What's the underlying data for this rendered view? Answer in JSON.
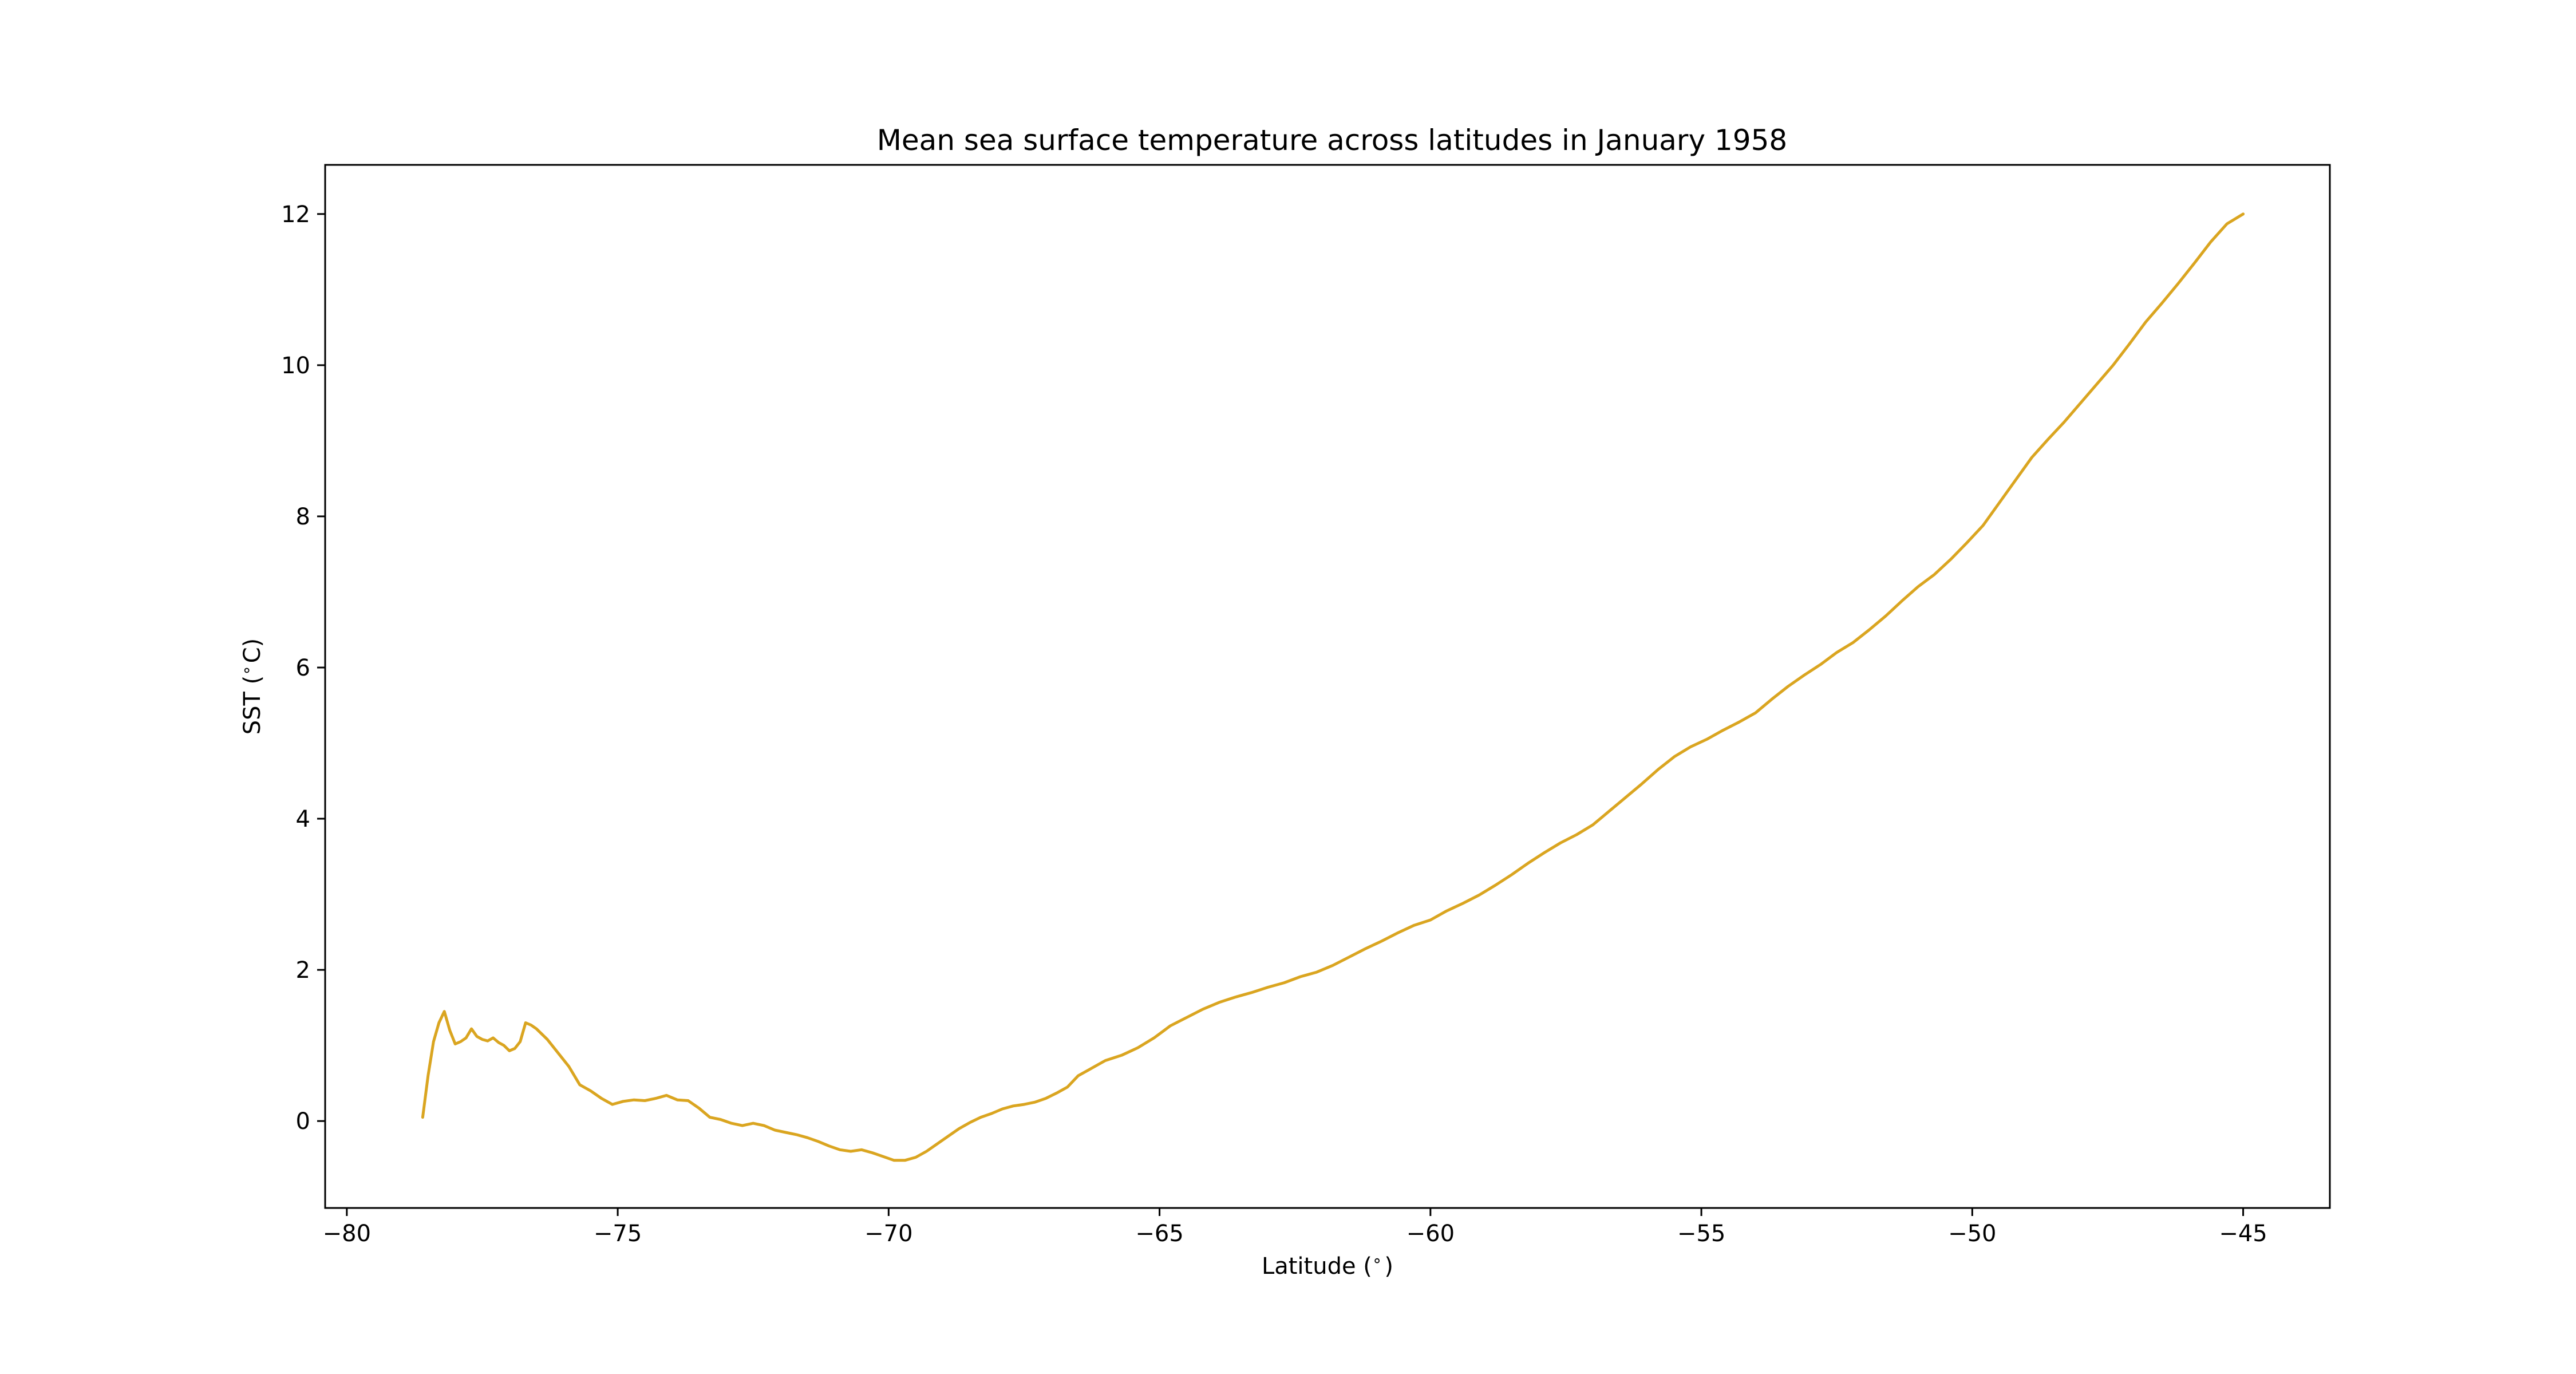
{
  "chart_data": {
    "type": "line",
    "title": "Mean sea surface temperature across latitudes in January 1958",
    "xlabel": "Latitude ($^\\circ$)",
    "ylabel": "SST ($^\\circ$C)",
    "xlim": [
      -80.4,
      -43.4
    ],
    "ylim": [
      -1.15,
      12.65
    ],
    "xticks": [
      -80,
      -75,
      -70,
      -65,
      -60,
      -55,
      -50,
      -45
    ],
    "xtick_labels": [
      "−80",
      "−75",
      "−70",
      "−65",
      "−60",
      "−55",
      "−50",
      "−45"
    ],
    "yticks": [
      0,
      2,
      4,
      6,
      8,
      10,
      12
    ],
    "ytick_labels": [
      "0",
      "2",
      "4",
      "6",
      "8",
      "10",
      "12"
    ],
    "grid": false,
    "legend": "none",
    "colors": {
      "line": "#daa520",
      "axes": "#000000",
      "background": "#ffffff"
    },
    "series": [
      {
        "x": [
          -78.6,
          -78.5,
          -78.4,
          -78.3,
          -78.2,
          -78.1,
          -78.0,
          -77.9,
          -77.8,
          -77.7,
          -77.6,
          -77.5,
          -77.4,
          -77.3,
          -77.2,
          -77.1,
          -77.0,
          -76.9,
          -76.8,
          -76.7,
          -76.6,
          -76.5,
          -76.3,
          -76.1,
          -75.9,
          -75.7,
          -75.5,
          -75.3,
          -75.1,
          -74.9,
          -74.7,
          -74.5,
          -74.3,
          -74.1,
          -73.9,
          -73.7,
          -73.5,
          -73.3,
          -73.1,
          -72.9,
          -72.7,
          -72.5,
          -72.3,
          -72.1,
          -71.9,
          -71.7,
          -71.5,
          -71.3,
          -71.1,
          -70.9,
          -70.7,
          -70.5,
          -70.3,
          -70.1,
          -69.9,
          -69.7,
          -69.5,
          -69.3,
          -69.1,
          -68.9,
          -68.7,
          -68.5,
          -68.3,
          -68.1,
          -67.9,
          -67.7,
          -67.5,
          -67.3,
          -67.1,
          -66.9,
          -66.7,
          -66.5,
          -66.3,
          -66.0,
          -65.7,
          -65.4,
          -65.1,
          -64.8,
          -64.5,
          -64.2,
          -63.9,
          -63.6,
          -63.3,
          -63.0,
          -62.7,
          -62.4,
          -62.1,
          -61.8,
          -61.5,
          -61.2,
          -60.9,
          -60.6,
          -60.3,
          -60.0,
          -59.7,
          -59.4,
          -59.1,
          -58.8,
          -58.5,
          -58.2,
          -57.9,
          -57.6,
          -57.3,
          -57.0,
          -56.7,
          -56.4,
          -56.1,
          -55.8,
          -55.5,
          -55.2,
          -54.9,
          -54.6,
          -54.3,
          -54.0,
          -53.7,
          -53.4,
          -53.1,
          -52.8,
          -52.5,
          -52.2,
          -51.9,
          -51.6,
          -51.3,
          -51.0,
          -50.7,
          -50.4,
          -50.1,
          -49.8,
          -49.5,
          -49.2,
          -48.9,
          -48.6,
          -48.3,
          -48.0,
          -47.7,
          -47.4,
          -47.1,
          -46.8,
          -46.5,
          -46.2,
          -45.9,
          -45.6,
          -45.3,
          -45.0
        ],
        "y": [
          0.05,
          0.6,
          1.05,
          1.3,
          1.45,
          1.2,
          1.02,
          1.05,
          1.1,
          1.22,
          1.12,
          1.08,
          1.06,
          1.1,
          1.04,
          1.0,
          0.93,
          0.96,
          1.05,
          1.3,
          1.27,
          1.22,
          1.08,
          0.9,
          0.72,
          0.48,
          0.4,
          0.3,
          0.22,
          0.26,
          0.28,
          0.27,
          0.3,
          0.34,
          0.28,
          0.27,
          0.17,
          0.05,
          0.02,
          -0.03,
          -0.06,
          -0.03,
          -0.06,
          -0.12,
          -0.15,
          -0.18,
          -0.22,
          -0.27,
          -0.33,
          -0.38,
          -0.4,
          -0.38,
          -0.42,
          -0.47,
          -0.52,
          -0.52,
          -0.48,
          -0.4,
          -0.3,
          -0.2,
          -0.1,
          -0.02,
          0.05,
          0.1,
          0.16,
          0.2,
          0.22,
          0.25,
          0.3,
          0.37,
          0.45,
          0.6,
          0.68,
          0.8,
          0.87,
          0.97,
          1.1,
          1.26,
          1.37,
          1.48,
          1.57,
          1.64,
          1.7,
          1.77,
          1.83,
          1.91,
          1.97,
          2.06,
          2.17,
          2.28,
          2.38,
          2.49,
          2.59,
          2.66,
          2.78,
          2.88,
          2.99,
          3.12,
          3.26,
          3.41,
          3.55,
          3.68,
          3.79,
          3.92,
          4.1,
          4.28,
          4.46,
          4.65,
          4.82,
          4.95,
          5.05,
          5.17,
          5.28,
          5.4,
          5.58,
          5.75,
          5.9,
          6.04,
          6.2,
          6.33,
          6.5,
          6.68,
          6.88,
          7.07,
          7.23,
          7.43,
          7.65,
          7.88,
          8.18,
          8.48,
          8.78,
          9.02,
          9.25,
          9.5,
          9.75,
          10.0,
          10.28,
          10.57,
          10.82,
          11.08,
          11.35,
          11.63,
          11.87,
          12.0
        ]
      }
    ]
  }
}
